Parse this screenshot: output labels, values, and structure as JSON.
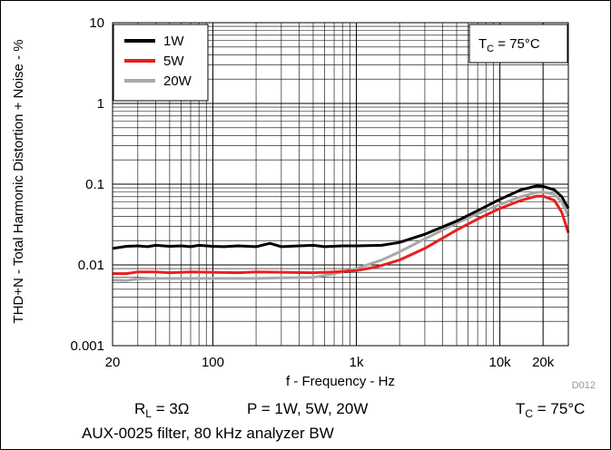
{
  "chart_data": {
    "type": "line",
    "title": "",
    "xlabel": "f - Frequency - Hz",
    "ylabel": "THD+N - Total Harmonic Distortion + Noise - %",
    "x_scale": "log",
    "y_scale": "log",
    "xlim": [
      20,
      30000
    ],
    "ylim": [
      0.001,
      10
    ],
    "x_ticks": [
      20,
      100,
      1000,
      10000,
      20000
    ],
    "x_tick_labels": [
      "20",
      "100",
      "1k",
      "10k",
      "20k"
    ],
    "y_ticks": [
      0.001,
      0.01,
      0.1,
      1,
      10
    ],
    "y_tick_labels": [
      "0.001",
      "0.01",
      "0.1",
      "1",
      "10"
    ],
    "grid": true,
    "legend_position": "top-left",
    "series": [
      {
        "name": "1W",
        "color": "#000000",
        "points": [
          [
            20,
            0.016
          ],
          [
            25,
            0.017
          ],
          [
            30,
            0.0172
          ],
          [
            35,
            0.0168
          ],
          [
            40,
            0.0175
          ],
          [
            50,
            0.017
          ],
          [
            60,
            0.0172
          ],
          [
            70,
            0.0168
          ],
          [
            80,
            0.0175
          ],
          [
            100,
            0.017
          ],
          [
            120,
            0.0168
          ],
          [
            150,
            0.0172
          ],
          [
            200,
            0.0168
          ],
          [
            250,
            0.0185
          ],
          [
            300,
            0.0168
          ],
          [
            400,
            0.0172
          ],
          [
            500,
            0.0175
          ],
          [
            600,
            0.0168
          ],
          [
            800,
            0.0172
          ],
          [
            1000,
            0.0172
          ],
          [
            1500,
            0.0175
          ],
          [
            2000,
            0.019
          ],
          [
            3000,
            0.024
          ],
          [
            5000,
            0.035
          ],
          [
            7000,
            0.047
          ],
          [
            10000,
            0.065
          ],
          [
            14000,
            0.085
          ],
          [
            18000,
            0.095
          ],
          [
            20000,
            0.094
          ],
          [
            24000,
            0.085
          ],
          [
            27000,
            0.07
          ],
          [
            30000,
            0.05
          ]
        ]
      },
      {
        "name": "5W",
        "color": "#e8201c",
        "points": [
          [
            20,
            0.0078
          ],
          [
            25,
            0.0078
          ],
          [
            30,
            0.0082
          ],
          [
            40,
            0.0082
          ],
          [
            50,
            0.008
          ],
          [
            70,
            0.0082
          ],
          [
            100,
            0.0081
          ],
          [
            150,
            0.008
          ],
          [
            200,
            0.0082
          ],
          [
            300,
            0.0081
          ],
          [
            500,
            0.008
          ],
          [
            700,
            0.0082
          ],
          [
            1000,
            0.0085
          ],
          [
            1400,
            0.0095
          ],
          [
            2000,
            0.0115
          ],
          [
            3000,
            0.016
          ],
          [
            5000,
            0.027
          ],
          [
            7000,
            0.037
          ],
          [
            10000,
            0.05
          ],
          [
            14000,
            0.063
          ],
          [
            18000,
            0.071
          ],
          [
            20000,
            0.071
          ],
          [
            24000,
            0.063
          ],
          [
            27000,
            0.045
          ],
          [
            30000,
            0.025
          ]
        ]
      },
      {
        "name": "20W",
        "color": "#a8a8a8",
        "points": [
          [
            20,
            0.0065
          ],
          [
            25,
            0.0064
          ],
          [
            30,
            0.0067
          ],
          [
            40,
            0.0068
          ],
          [
            50,
            0.0068
          ],
          [
            70,
            0.0068
          ],
          [
            100,
            0.0068
          ],
          [
            150,
            0.0068
          ],
          [
            200,
            0.0068
          ],
          [
            300,
            0.0069
          ],
          [
            500,
            0.007
          ],
          [
            700,
            0.0078
          ],
          [
            1000,
            0.009
          ],
          [
            1500,
            0.0115
          ],
          [
            2000,
            0.0145
          ],
          [
            3000,
            0.021
          ],
          [
            5000,
            0.033
          ],
          [
            7000,
            0.043
          ],
          [
            10000,
            0.056
          ],
          [
            14000,
            0.07
          ],
          [
            18000,
            0.079
          ],
          [
            20000,
            0.08
          ],
          [
            24000,
            0.075
          ],
          [
            27000,
            0.06
          ],
          [
            30000,
            0.04
          ]
        ]
      }
    ],
    "annotations": {
      "tc_box": "T_C = 75°C",
      "doc_id": "D012"
    }
  },
  "captions": {
    "rl_main": "R",
    "rl_sub": "L",
    "rl_rest": " = 3Ω",
    "power": "P = 1W, 5W, 20W",
    "tc_main": "T",
    "tc_sub": "C",
    "tc_rest": " = 75°C",
    "filter": "AUX-0025 filter, 80 kHz analyzer BW"
  }
}
